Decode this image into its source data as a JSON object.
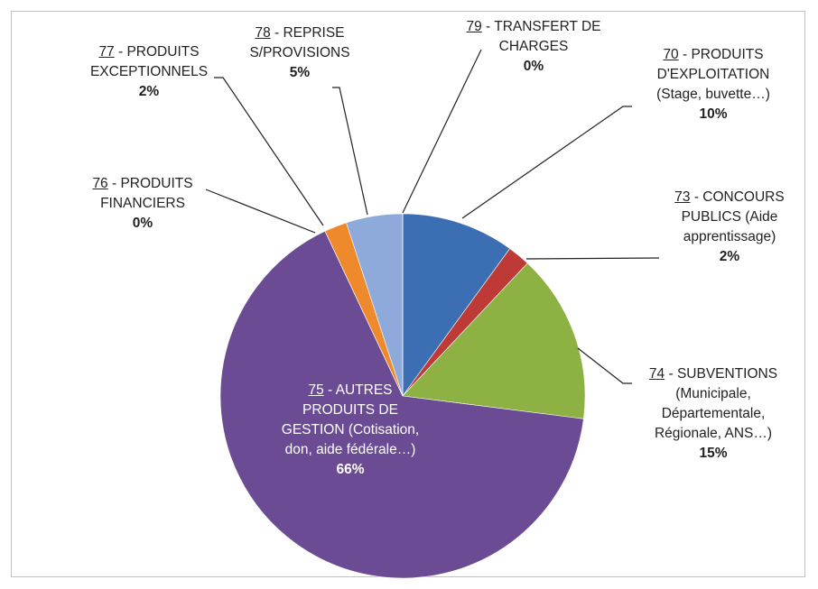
{
  "chart_data": {
    "type": "pie",
    "categories": [
      "70 - PRODUITS D'EXPLOITATION (Stage, buvette…)",
      "73 - CONCOURS PUBLICS (Aide apprentissage)",
      "74 - SUBVENTIONS (Municipale, Départementale, Régionale, ANS…)",
      "75 - AUTRES PRODUITS DE GESTION (Cotisation, don, aide fédérale…)",
      "76 - PRODUITS FINANCIERS",
      "77 - PRODUITS EXCEPTIONNELS",
      "78 - REPRISE S/PROVISIONS",
      "79 - TRANSFERT DE CHARGES"
    ],
    "values": [
      10,
      2,
      15,
      66,
      0,
      2,
      5,
      0
    ],
    "value_labels": [
      "10%",
      "2%",
      "15%",
      "66%",
      "0%",
      "2%",
      "5%",
      "0%"
    ],
    "colors": [
      "#3c6eb4",
      "#be3a36",
      "#8db143",
      "#6b4c94",
      "#3fa7c4",
      "#ef8a2c",
      "#8eaadb",
      "#e8a0a0"
    ]
  }
}
